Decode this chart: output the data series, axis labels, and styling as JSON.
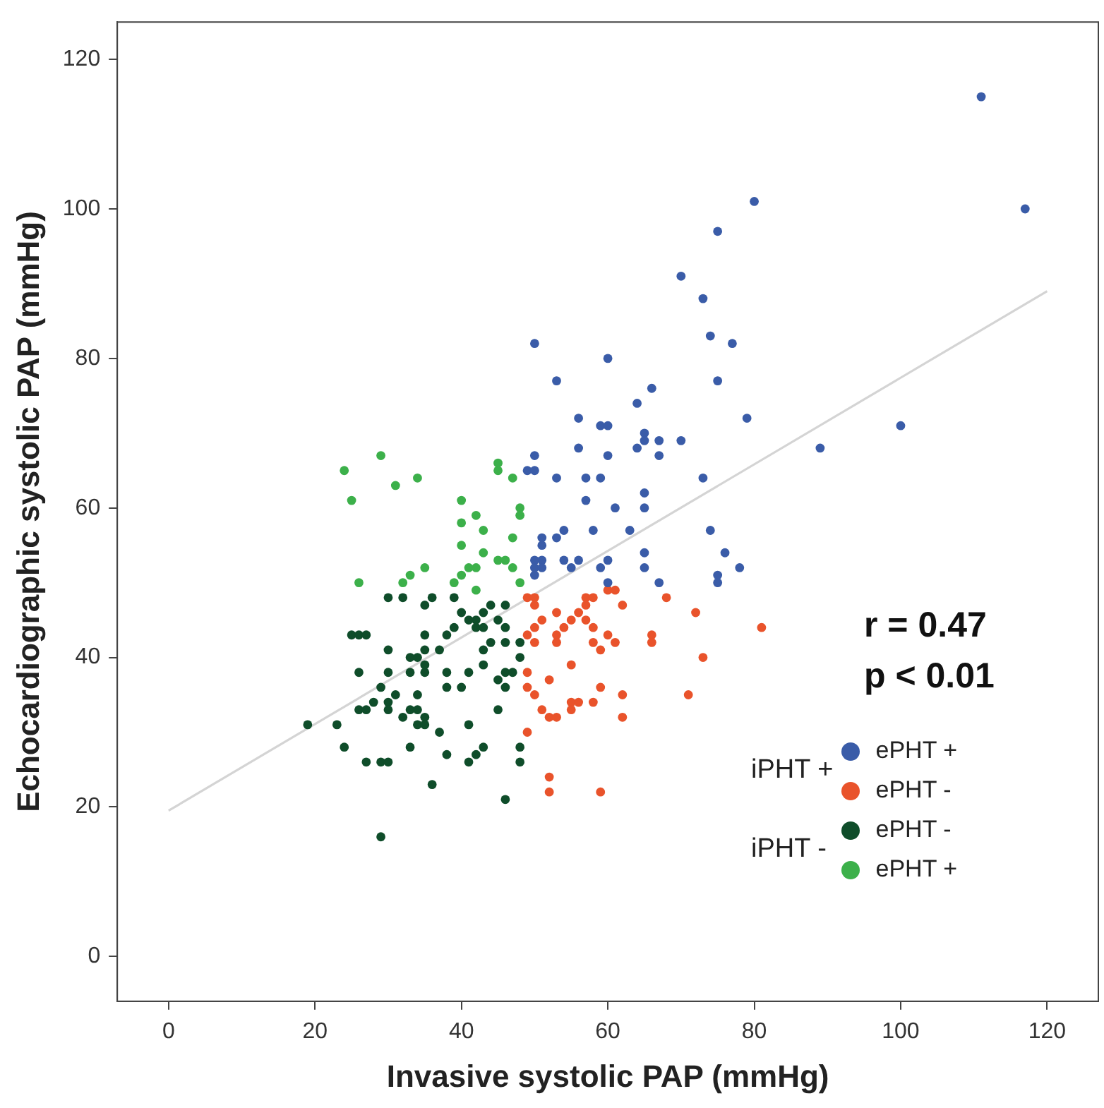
{
  "chart_data": {
    "type": "scatter",
    "xlabel": "Invasive systolic PAP (mmHg)",
    "ylabel": "Echocardiographic systolic PAP (mmHg)",
    "xlim": [
      -7,
      127
    ],
    "ylim": [
      -6,
      125
    ],
    "xticks": [
      0,
      20,
      40,
      60,
      80,
      100,
      120
    ],
    "yticks": [
      0,
      20,
      40,
      60,
      80,
      100,
      120
    ],
    "grid": false,
    "legend": "bottom right",
    "annotations": [
      "r = 0.47",
      "p < 0.01",
      "iPHT +",
      "iPHT -"
    ],
    "series": [
      {
        "name": "ePHT +",
        "color": "#3a5ca8",
        "marker": "circle",
        "x": [
          111,
          117,
          80,
          75,
          70,
          73,
          74,
          77,
          50,
          60,
          53,
          75,
          66,
          64,
          100,
          89,
          79,
          56,
          59,
          60,
          56,
          64,
          65,
          65,
          67,
          70,
          50,
          60,
          67,
          49,
          50,
          53,
          57,
          59,
          73,
          57,
          61,
          65,
          65,
          51,
          51,
          53,
          54,
          58,
          63,
          74,
          50,
          50,
          50,
          51,
          51,
          54,
          56,
          55,
          59,
          60,
          60,
          65,
          65,
          67,
          76,
          78,
          75,
          75
        ],
        "values": [
          115,
          100,
          101,
          97,
          91,
          88,
          83,
          82,
          82,
          80,
          77,
          77,
          76,
          74,
          71,
          68,
          72,
          72,
          71,
          71,
          68,
          68,
          70,
          69,
          69,
          69,
          67,
          67,
          67,
          65,
          65,
          64,
          64,
          64,
          64,
          61,
          60,
          62,
          60,
          56,
          55,
          56,
          57,
          57,
          57,
          57,
          53,
          52,
          51,
          53,
          52,
          53,
          53,
          52,
          52,
          53,
          50,
          54,
          52,
          50,
          54,
          52,
          51,
          50
        ]
      },
      {
        "name": "ePHT -",
        "color": "#e9532b",
        "marker": "circle",
        "x": [
          49,
          50,
          50,
          57,
          58,
          57,
          60,
          61,
          62,
          68,
          53,
          56,
          72,
          51,
          55,
          57,
          54,
          58,
          81,
          49,
          50,
          53,
          53,
          60,
          66,
          66,
          50,
          58,
          61,
          59,
          73,
          55,
          49,
          52,
          49,
          50,
          59,
          62,
          71,
          51,
          55,
          56,
          55,
          58,
          52,
          53,
          62,
          49,
          52,
          52,
          59
        ],
        "values": [
          48,
          48,
          47,
          48,
          48,
          47,
          49,
          49,
          47,
          48,
          46,
          46,
          46,
          45,
          45,
          45,
          44,
          44,
          44,
          43,
          44,
          43,
          42,
          43,
          43,
          42,
          42,
          42,
          42,
          41,
          40,
          39,
          38,
          37,
          36,
          35,
          36,
          35,
          35,
          33,
          34,
          34,
          33,
          34,
          32,
          32,
          32,
          30,
          24,
          22,
          22
        ]
      },
      {
        "name": "ePHT -",
        "color": "#0f4d2a",
        "marker": "circle",
        "x": [
          30,
          32,
          36,
          35,
          39,
          40,
          41,
          42,
          43,
          44,
          46,
          45,
          39,
          38,
          42,
          43,
          46,
          25,
          26,
          27,
          35,
          44,
          46,
          48,
          30,
          35,
          37,
          43,
          48,
          33,
          34,
          35,
          43,
          26,
          30,
          33,
          35,
          38,
          41,
          46,
          47,
          45,
          46,
          38,
          40,
          29,
          31,
          28,
          30,
          34,
          26,
          27,
          30,
          33,
          34,
          32,
          35,
          34,
          35,
          45,
          37,
          41,
          19,
          23,
          24,
          33,
          38,
          41,
          42,
          43,
          27,
          29,
          30,
          48,
          48,
          36,
          46,
          29
        ],
        "values": [
          48,
          48,
          48,
          47,
          48,
          46,
          45,
          45,
          46,
          47,
          47,
          45,
          44,
          43,
          44,
          44,
          44,
          43,
          43,
          43,
          43,
          42,
          42,
          42,
          41,
          41,
          41,
          41,
          40,
          40,
          40,
          39,
          39,
          38,
          38,
          38,
          38,
          38,
          38,
          38,
          38,
          37,
          36,
          36,
          36,
          36,
          35,
          34,
          34,
          35,
          33,
          33,
          33,
          33,
          33,
          32,
          32,
          31,
          31,
          33,
          30,
          31,
          31,
          31,
          28,
          28,
          27,
          26,
          27,
          28,
          26,
          26,
          26,
          28,
          26,
          23,
          21,
          16
        ]
      },
      {
        "name": "ePHT +",
        "color": "#3cb04a",
        "marker": "circle",
        "x": [
          29,
          24,
          31,
          34,
          25,
          45,
          45,
          47,
          40,
          42,
          40,
          43,
          40,
          43,
          47,
          48,
          48,
          45,
          46,
          47,
          48,
          41,
          42,
          40,
          39,
          42,
          35,
          33,
          32,
          26
        ],
        "values": [
          67,
          65,
          63,
          64,
          61,
          66,
          65,
          64,
          61,
          59,
          58,
          57,
          55,
          54,
          56,
          60,
          59,
          53,
          53,
          52,
          50,
          52,
          52,
          51,
          50,
          49,
          52,
          51,
          50,
          50
        ]
      },
      {
        "type": "line",
        "color": "#d4d4d4",
        "marker": "none",
        "x": [
          0,
          120
        ],
        "values": [
          19.5,
          89
        ]
      }
    ]
  }
}
